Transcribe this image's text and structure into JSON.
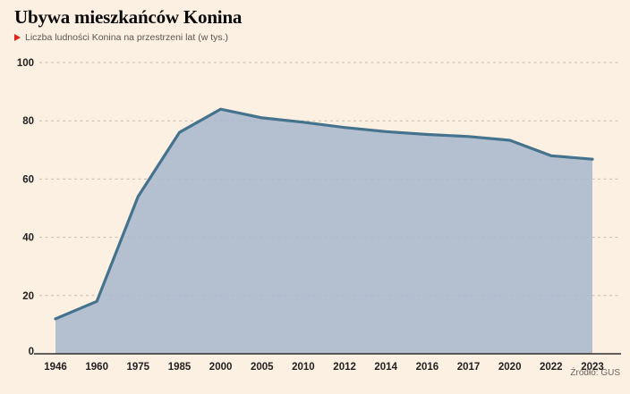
{
  "header": {
    "title": "Ubywa mieszkańców Konina",
    "subtitle": "Liczba ludności Konina na przestrzeni lat (w tys.)"
  },
  "footer": {
    "source": "Źródło: GUS"
  },
  "colors": {
    "background": "#fcf0e2",
    "line": "#45738e",
    "area_fill": "rgba(170,184,205,0.88)",
    "grid": "#c6bcb1",
    "axis": "#2e2c2a",
    "tick_text": "#222120",
    "subtitle_text": "#5a554f",
    "accent_red": "#e2231a"
  },
  "chart_data": {
    "type": "area",
    "title": "Ubywa mieszkańców Konina",
    "subtitle": "Liczba ludności Konina na przestrzeni lat (w tys.)",
    "unit": "w tys.",
    "categories": [
      "1946",
      "1960",
      "1975",
      "1985",
      "2000",
      "2005",
      "2010",
      "2012",
      "2014",
      "2016",
      "2017",
      "2020",
      "2022",
      "2023"
    ],
    "values": [
      12,
      18,
      54,
      76,
      84,
      81,
      79.5,
      77.7,
      76.3,
      75.3,
      74.6,
      73.3,
      68,
      66.8
    ],
    "ylim": [
      0,
      100
    ],
    "yticks": [
      0,
      20,
      40,
      60,
      80,
      100
    ],
    "grid": "horizontal-dashed",
    "legend": "none",
    "source": "Źródło: GUS"
  }
}
